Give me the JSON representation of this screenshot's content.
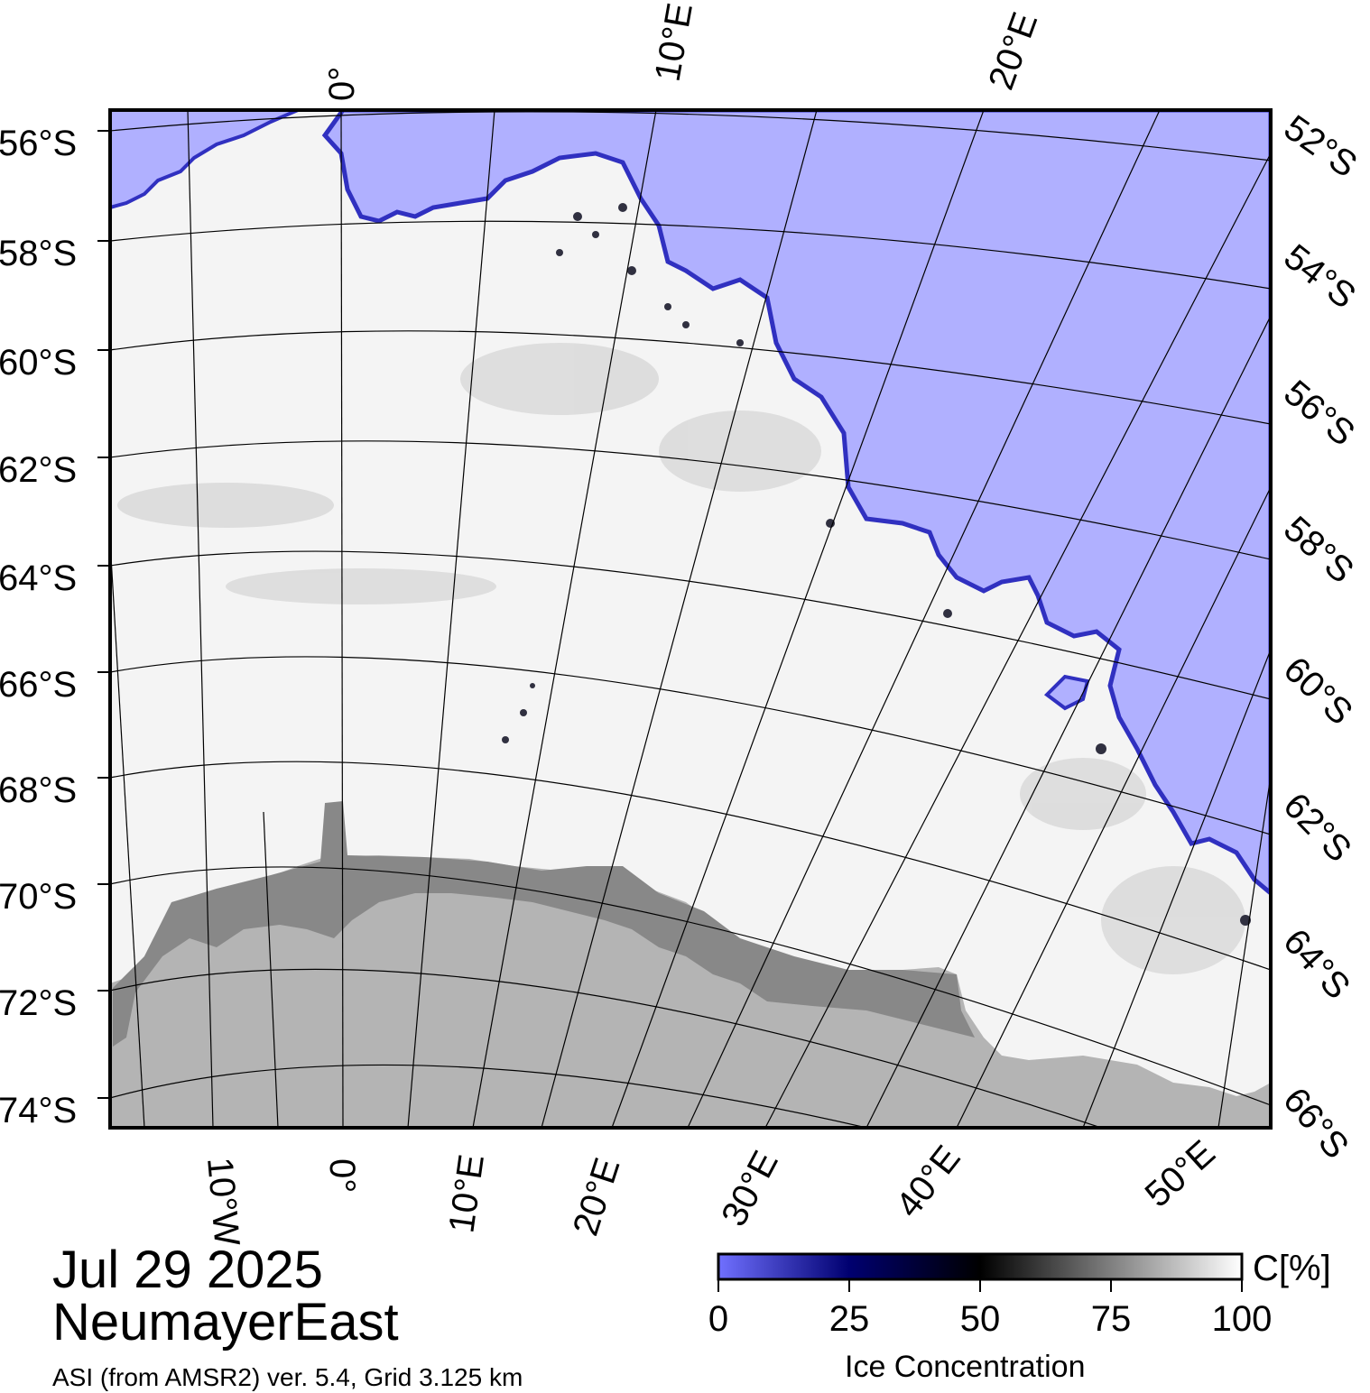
{
  "map": {
    "date": "Jul 29 2025",
    "region": "NeumayerEast",
    "credit": "ASI (from AMSR2) ver. 5.4,  Grid 3.125 km",
    "colors": {
      "open_water": "#b0b0ff",
      "ice_edge": "#3030c0",
      "land": "#b4b4b4",
      "ice_shelf": "#888888",
      "sea_ice": "#f4f4f4",
      "frame": "#000000"
    },
    "labels": {
      "lat_left": [
        "56°S",
        "58°S",
        "60°S",
        "62°S",
        "64°S",
        "66°S",
        "68°S",
        "70°S",
        "72°S",
        "74°S"
      ],
      "lat_right": [
        "52°S",
        "54°S",
        "56°S",
        "58°S",
        "60°S",
        "62°S",
        "64°S",
        "66°S"
      ],
      "lon_top": [
        "0°",
        "10°E",
        "20°E"
      ],
      "lon_bottom": [
        "10°W",
        "0°",
        "10°E",
        "20°E",
        "30°E",
        "40°E",
        "50°E"
      ]
    }
  },
  "colorbar": {
    "title": "Ice Concentration",
    "unit": "C[%]",
    "ticks": [
      "0",
      "25",
      "50",
      "75",
      "100"
    ],
    "range": [
      0,
      100
    ],
    "stops": [
      {
        "value": 0,
        "color": "#7070ff"
      },
      {
        "value": 25,
        "color": "#000070"
      },
      {
        "value": 50,
        "color": "#000000"
      },
      {
        "value": 100,
        "color": "#ffffff"
      }
    ]
  }
}
